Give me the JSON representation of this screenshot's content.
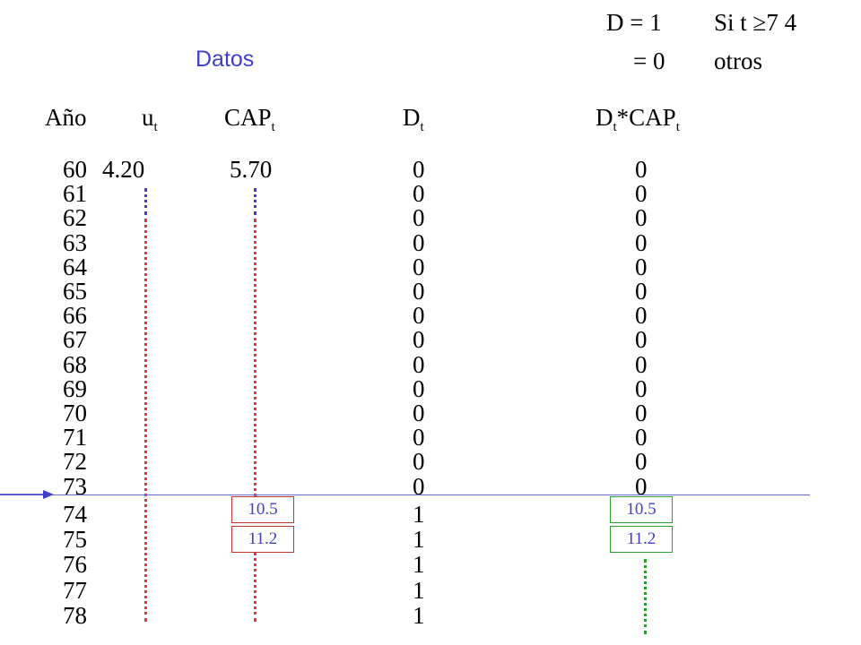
{
  "condition": {
    "line1_left": "D = 1",
    "line1_right": "Si t ≥7 4",
    "line2_left": "= 0",
    "line2_right": "otros"
  },
  "title": "Datos",
  "headers": {
    "year": "Año",
    "u": "u",
    "u_sub": "t",
    "cap": "CAP",
    "cap_sub": "t",
    "d": "D",
    "d_sub": "t",
    "dcap_pre": "D",
    "dcap_pre_sub": "t",
    "dcap_mid": "*CAP",
    "dcap_sub": "t"
  },
  "years": [
    "60",
    "61",
    "62",
    "63",
    "64",
    "65",
    "66",
    "67",
    "68",
    "69",
    "70",
    "71",
    "72",
    "73",
    "74",
    "75",
    "76",
    "77",
    "78"
  ],
  "u_first": "4.20",
  "cap_first": "5.70",
  "d_values": [
    "0",
    "0",
    "0",
    "0",
    "0",
    "0",
    "0",
    "0",
    "0",
    "0",
    "0",
    "0",
    "0",
    "0",
    "1",
    "1",
    "1",
    "1",
    "1"
  ],
  "dcap_values": [
    "0",
    "0",
    "0",
    "0",
    "0",
    "0",
    "0",
    "0",
    "0",
    "0",
    "0",
    "0",
    "0",
    "0"
  ],
  "cap_boxes": [
    "10.5",
    "11.2"
  ],
  "dcap_boxes": [
    "10.5",
    "11.2"
  ],
  "colors": {
    "blue": "#3f3fc8",
    "red": "#e03c3c",
    "green": "#2e9e2e",
    "line": "#6b6bd0"
  }
}
